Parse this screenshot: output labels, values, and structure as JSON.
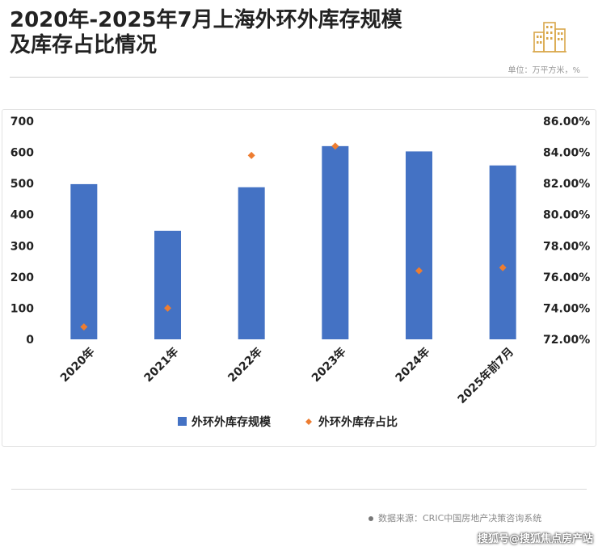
{
  "header": {
    "title_line1": "2020年-2025年7月上海外环外库存规模",
    "title_line2": "及库存占比情况",
    "unit_note": "单位：万平方米，%"
  },
  "footer": {
    "source": "数据来源：CRIC中国房地产决策咨询系统",
    "watermark": "搜狐号@搜狐焦点房产站"
  },
  "icons": {
    "logo": "buildings-icon",
    "source_bullet": "dot-icon"
  },
  "colors": {
    "bar": "#4472C4",
    "marker": "#ED7D31",
    "title": "#222222",
    "logo": "#D9A74A"
  },
  "chart_data": {
    "type": "bar",
    "categories": [
      "2020年",
      "2021年",
      "2022年",
      "2023年",
      "2024年",
      "2025年前7月"
    ],
    "series": [
      {
        "name": "外环外库存规模",
        "type": "bar",
        "axis": "left",
        "values": [
          498,
          348,
          488,
          620,
          603,
          558
        ]
      },
      {
        "name": "外环外库存占比",
        "type": "scatter",
        "axis": "right",
        "values": [
          72.8,
          74.0,
          83.8,
          84.4,
          76.4,
          76.6
        ]
      }
    ],
    "ylim_left": [
      0,
      700
    ],
    "yticks_left": [
      "0",
      "100",
      "200",
      "300",
      "400",
      "500",
      "600",
      "700"
    ],
    "ylim_right": [
      72,
      86
    ],
    "yticks_right": [
      "72.00%",
      "74.00%",
      "76.00%",
      "78.00%",
      "80.00%",
      "82.00%",
      "84.00%",
      "86.00%"
    ],
    "grid": false,
    "legend_position": "bottom"
  }
}
